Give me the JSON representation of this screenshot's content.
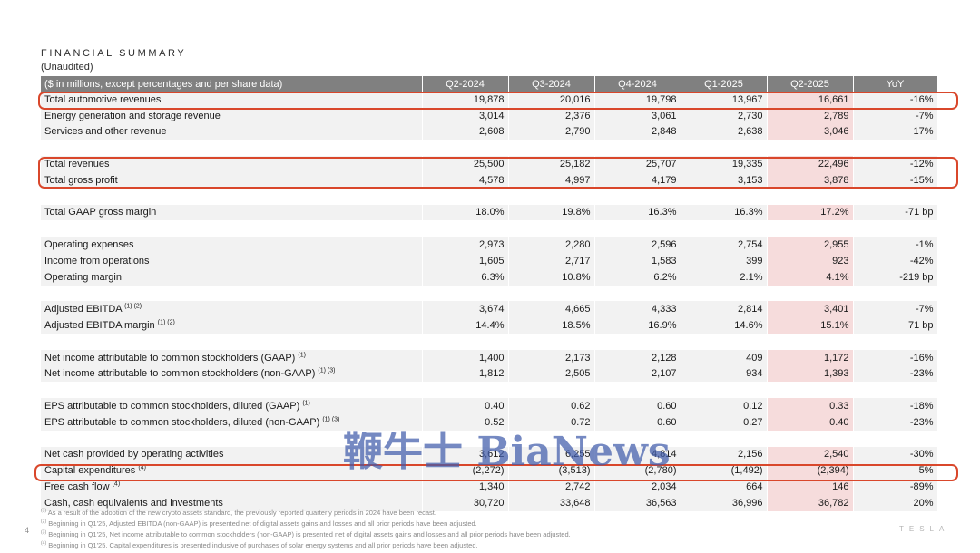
{
  "header": {
    "title": "FINANCIAL SUMMARY",
    "subtitle": "(Unaudited)"
  },
  "table": {
    "columns": [
      "($ in millions, except percentages and per share data)",
      "Q2-2024",
      "Q3-2024",
      "Q4-2024",
      "Q1-2025",
      "Q2-2025",
      "YoY"
    ],
    "rows": [
      {
        "label": "Total automotive revenues",
        "sup": "",
        "values": [
          "19,878",
          "20,016",
          "19,798",
          "13,967",
          "16,661",
          "-16%"
        ]
      },
      {
        "label": "Energy generation and storage revenue",
        "sup": "",
        "values": [
          "3,014",
          "2,376",
          "3,061",
          "2,730",
          "2,789",
          "-7%"
        ]
      },
      {
        "label": "Services and other revenue",
        "sup": "",
        "values": [
          "2,608",
          "2,790",
          "2,848",
          "2,638",
          "3,046",
          "17%"
        ]
      },
      {
        "label": "Total revenues",
        "sup": "",
        "values": [
          "25,500",
          "25,182",
          "25,707",
          "19,335",
          "22,496",
          "-12%"
        ]
      },
      {
        "label": "Total gross profit",
        "sup": "",
        "values": [
          "4,578",
          "4,997",
          "4,179",
          "3,153",
          "3,878",
          "-15%"
        ]
      },
      {
        "label": "Total GAAP gross margin",
        "sup": "",
        "values": [
          "18.0%",
          "19.8%",
          "16.3%",
          "16.3%",
          "17.2%",
          "-71 bp"
        ]
      },
      {
        "label": "Operating expenses",
        "sup": "",
        "values": [
          "2,973",
          "2,280",
          "2,596",
          "2,754",
          "2,955",
          "-1%"
        ]
      },
      {
        "label": "Income from operations",
        "sup": "",
        "values": [
          "1,605",
          "2,717",
          "1,583",
          "399",
          "923",
          "-42%"
        ]
      },
      {
        "label": "Operating margin",
        "sup": "",
        "values": [
          "6.3%",
          "10.8%",
          "6.2%",
          "2.1%",
          "4.1%",
          "-219 bp"
        ]
      },
      {
        "label": "Adjusted EBITDA",
        "sup": "(1) (2)",
        "values": [
          "3,674",
          "4,665",
          "4,333",
          "2,814",
          "3,401",
          "-7%"
        ]
      },
      {
        "label": "Adjusted EBITDA margin",
        "sup": "(1) (2)",
        "values": [
          "14.4%",
          "18.5%",
          "16.9%",
          "14.6%",
          "15.1%",
          "71 bp"
        ]
      },
      {
        "label": "Net income attributable to common stockholders (GAAP)",
        "sup": "(1)",
        "values": [
          "1,400",
          "2,173",
          "2,128",
          "409",
          "1,172",
          "-16%"
        ]
      },
      {
        "label": "Net income attributable to common stockholders (non-GAAP)",
        "sup": "(1) (3)",
        "values": [
          "1,812",
          "2,505",
          "2,107",
          "934",
          "1,393",
          "-23%"
        ]
      },
      {
        "label": "EPS attributable to common stockholders, diluted (GAAP)",
        "sup": "(1)",
        "values": [
          "0.40",
          "0.62",
          "0.60",
          "0.12",
          "0.33",
          "-18%"
        ]
      },
      {
        "label": "EPS attributable to common stockholders, diluted (non-GAAP)",
        "sup": "(1) (3)",
        "values": [
          "0.52",
          "0.72",
          "0.60",
          "0.27",
          "0.40",
          "-23%"
        ]
      },
      {
        "label": "Net cash provided by operating activities",
        "sup": "",
        "values": [
          "3,612",
          "6,255",
          "4,814",
          "2,156",
          "2,540",
          "-30%"
        ]
      },
      {
        "label": "Capital expenditures",
        "sup": "(4)",
        "values": [
          "(2,272)",
          "(3,513)",
          "(2,780)",
          "(1,492)",
          "(2,394)",
          "5%"
        ]
      },
      {
        "label": "Free cash flow",
        "sup": "(4)",
        "values": [
          "1,340",
          "2,742",
          "2,034",
          "664",
          "146",
          "-89%"
        ]
      },
      {
        "label": "Cash, cash equivalents and investments",
        "sup": "",
        "values": [
          "30,720",
          "33,648",
          "36,563",
          "36,996",
          "36,782",
          "20%"
        ]
      }
    ]
  },
  "watermark": "鞭牛士 BiaNews",
  "footnotes": [
    {
      "mark": "(1)",
      "text": "As a result of the adoption of the new crypto assets standard, the previously reported quarterly periods in 2024 have been recast."
    },
    {
      "mark": "(2)",
      "text": "Beginning in Q1'25, Adjusted EBITDA (non-GAAP) is presented net of digital assets gains and losses and all prior periods have been adjusted."
    },
    {
      "mark": "(3)",
      "text": "Beginning in Q1'25, Net income attributable to common stockholders (non-GAAP) is presented net of digital assets gains and losses and all prior periods have been adjusted."
    },
    {
      "mark": "(4)",
      "text": "Beginning in Q1'25, Capital expenditures is presented inclusive of purchases of solar energy systems and all prior periods have been adjusted."
    }
  ],
  "page_number": "4",
  "brand": "TESLA",
  "colors": {
    "header_bg": "#808080",
    "row_bg": "#f2f2f2",
    "highlight_col": "#f6dcdc",
    "box_outline": "#d9472b"
  }
}
